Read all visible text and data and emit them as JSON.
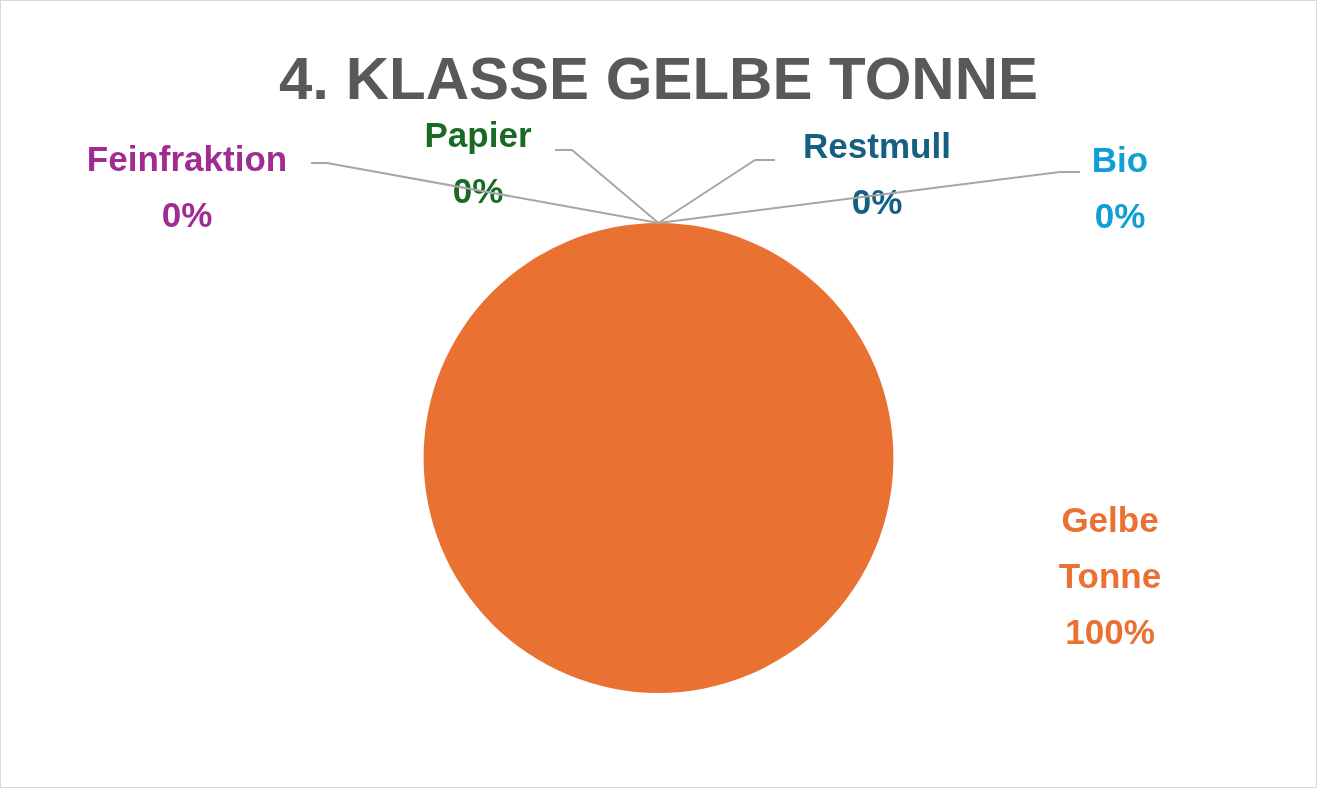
{
  "chart_data": {
    "type": "pie",
    "title": "4. KLASSE GELBE TONNE",
    "categories": [
      "Restmull",
      "Gelbe Tonne",
      "Papier",
      "Bio",
      "Feinfraktion"
    ],
    "values": [
      0,
      100,
      0,
      0,
      0
    ],
    "colors": [
      "#156082",
      "#e97132",
      "#196b24",
      "#0f9ed5",
      "#a02b93"
    ],
    "value_labels": [
      "0%",
      "100%",
      "0%",
      "0%",
      "0%"
    ]
  }
}
